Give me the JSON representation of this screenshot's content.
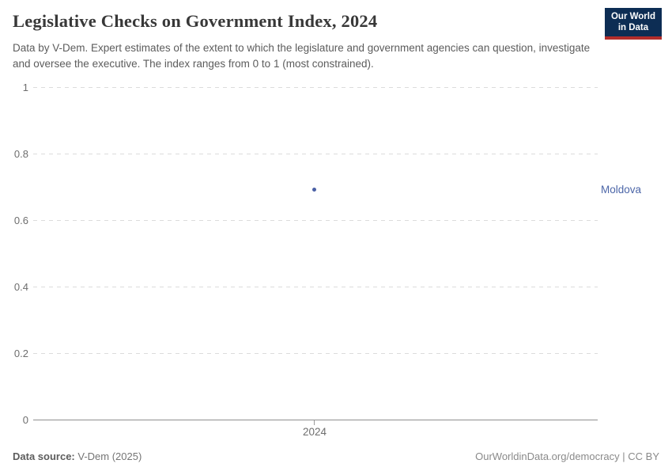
{
  "header": {
    "title": "Legislative Checks on Government Index, 2024",
    "subtitle": "Data by V-Dem. Expert estimates of the extent to which the legislature and government agencies can question, investigate and oversee the executive. The index ranges from 0 to 1 (most constrained).",
    "logo": {
      "line1": "Our World",
      "line2": "in Data"
    }
  },
  "chart_data": {
    "type": "scatter",
    "title": "Legislative Checks on Government Index, 2024",
    "x": [
      2024
    ],
    "series": [
      {
        "name": "Moldova",
        "values": [
          0.69
        ]
      }
    ],
    "xlabel": "",
    "ylabel": "",
    "ylim": [
      0,
      1
    ],
    "yticks": [
      0,
      0.2,
      0.4,
      0.6,
      0.8,
      1
    ],
    "xticks": [
      2024
    ],
    "grid": "horizontal-dashed",
    "legend_position": "label-right-of-plot",
    "point_color": "#4a60a5"
  },
  "axis": {
    "y_ticks": [
      "1",
      "0.8",
      "0.6",
      "0.4",
      "0.2",
      "0"
    ],
    "x_tick_label": "2024"
  },
  "entity": {
    "label": "Moldova"
  },
  "footer": {
    "source_label": "Data source:",
    "source_value": " V-Dem (2025)",
    "link_text": "OurWorldinData.org/democracy | CC BY"
  },
  "colors": {
    "accent_blue": "#4c66a8",
    "point_blue": "#4a60a5",
    "logo_navy": "#0d2d54",
    "logo_red": "#b22d2b",
    "gridline": "#dcdcdc",
    "axis_line": "#8f8f8f",
    "muted_text": "#6e6e6e",
    "title_text": "#383838"
  }
}
